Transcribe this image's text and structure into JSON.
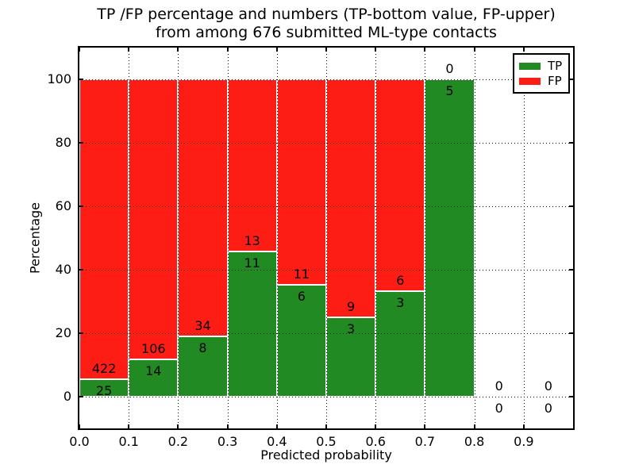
{
  "figure": {
    "title_line1": "TP /FP percentage and numbers (TP-bottom value, FP-upper)",
    "title_line2": "from among 676 submitted ML-type contacts",
    "xlabel": "Predicted probability",
    "ylabel": "Percentage",
    "total_contacts": 676
  },
  "legend": {
    "position": "upper right",
    "items": [
      {
        "label": "TP",
        "color": "#228a22"
      },
      {
        "label": "FP",
        "color": "#fd1d15"
      }
    ]
  },
  "colors": {
    "tp_green": "#228a22",
    "fp_red": "#fd1d15",
    "grid": "#000000",
    "background": "#ffffff",
    "text": "#000000"
  },
  "chart_data": {
    "type": "bar",
    "stacking": "percentage",
    "title": "TP /FP percentage and numbers (TP-bottom value, FP-upper) from among 676 submitted ML-type contacts",
    "xlabel": "Predicted probability",
    "ylabel": "Percentage",
    "xlim": [
      0.0,
      1.0
    ],
    "ylim": [
      -10,
      110
    ],
    "x_ticks": [
      "0.0",
      "0.1",
      "0.2",
      "0.3",
      "0.4",
      "0.5",
      "0.6",
      "0.7",
      "0.8",
      "0.9"
    ],
    "y_ticks": [
      0,
      20,
      40,
      60,
      80,
      100
    ],
    "grid": true,
    "legend_position": "upper right",
    "categories": [
      "0.0-0.1",
      "0.1-0.2",
      "0.2-0.3",
      "0.3-0.4",
      "0.4-0.5",
      "0.5-0.6",
      "0.6-0.7",
      "0.7-0.8",
      "0.8-0.9",
      "0.9-1.0"
    ],
    "series": [
      {
        "name": "TP",
        "color": "#228a22",
        "values": [
          25,
          14,
          8,
          11,
          6,
          3,
          3,
          5,
          0,
          0
        ]
      },
      {
        "name": "FP",
        "color": "#fd1d15",
        "values": [
          422,
          106,
          34,
          13,
          11,
          9,
          6,
          0,
          0,
          0
        ]
      }
    ],
    "bins": [
      {
        "x_start": 0.0,
        "x_end": 0.1,
        "tp": 25,
        "fp": 422,
        "tp_pct": 5.6,
        "fp_pct": 94.4
      },
      {
        "x_start": 0.1,
        "x_end": 0.2,
        "tp": 14,
        "fp": 106,
        "tp_pct": 11.7,
        "fp_pct": 88.3
      },
      {
        "x_start": 0.2,
        "x_end": 0.3,
        "tp": 8,
        "fp": 34,
        "tp_pct": 19.0,
        "fp_pct": 81.0
      },
      {
        "x_start": 0.3,
        "x_end": 0.4,
        "tp": 11,
        "fp": 13,
        "tp_pct": 45.8,
        "fp_pct": 54.2
      },
      {
        "x_start": 0.4,
        "x_end": 0.5,
        "tp": 6,
        "fp": 11,
        "tp_pct": 35.3,
        "fp_pct": 64.7
      },
      {
        "x_start": 0.5,
        "x_end": 0.6,
        "tp": 3,
        "fp": 9,
        "tp_pct": 25.0,
        "fp_pct": 75.0
      },
      {
        "x_start": 0.6,
        "x_end": 0.7,
        "tp": 3,
        "fp": 6,
        "tp_pct": 33.3,
        "fp_pct": 66.7
      },
      {
        "x_start": 0.7,
        "x_end": 0.8,
        "tp": 5,
        "fp": 0,
        "tp_pct": 100.0,
        "fp_pct": 0.0
      },
      {
        "x_start": 0.8,
        "x_end": 0.9,
        "tp": 0,
        "fp": 0,
        "tp_pct": null,
        "fp_pct": null
      },
      {
        "x_start": 0.9,
        "x_end": 1.0,
        "tp": 0,
        "fp": 0,
        "tp_pct": null,
        "fp_pct": null
      }
    ]
  }
}
